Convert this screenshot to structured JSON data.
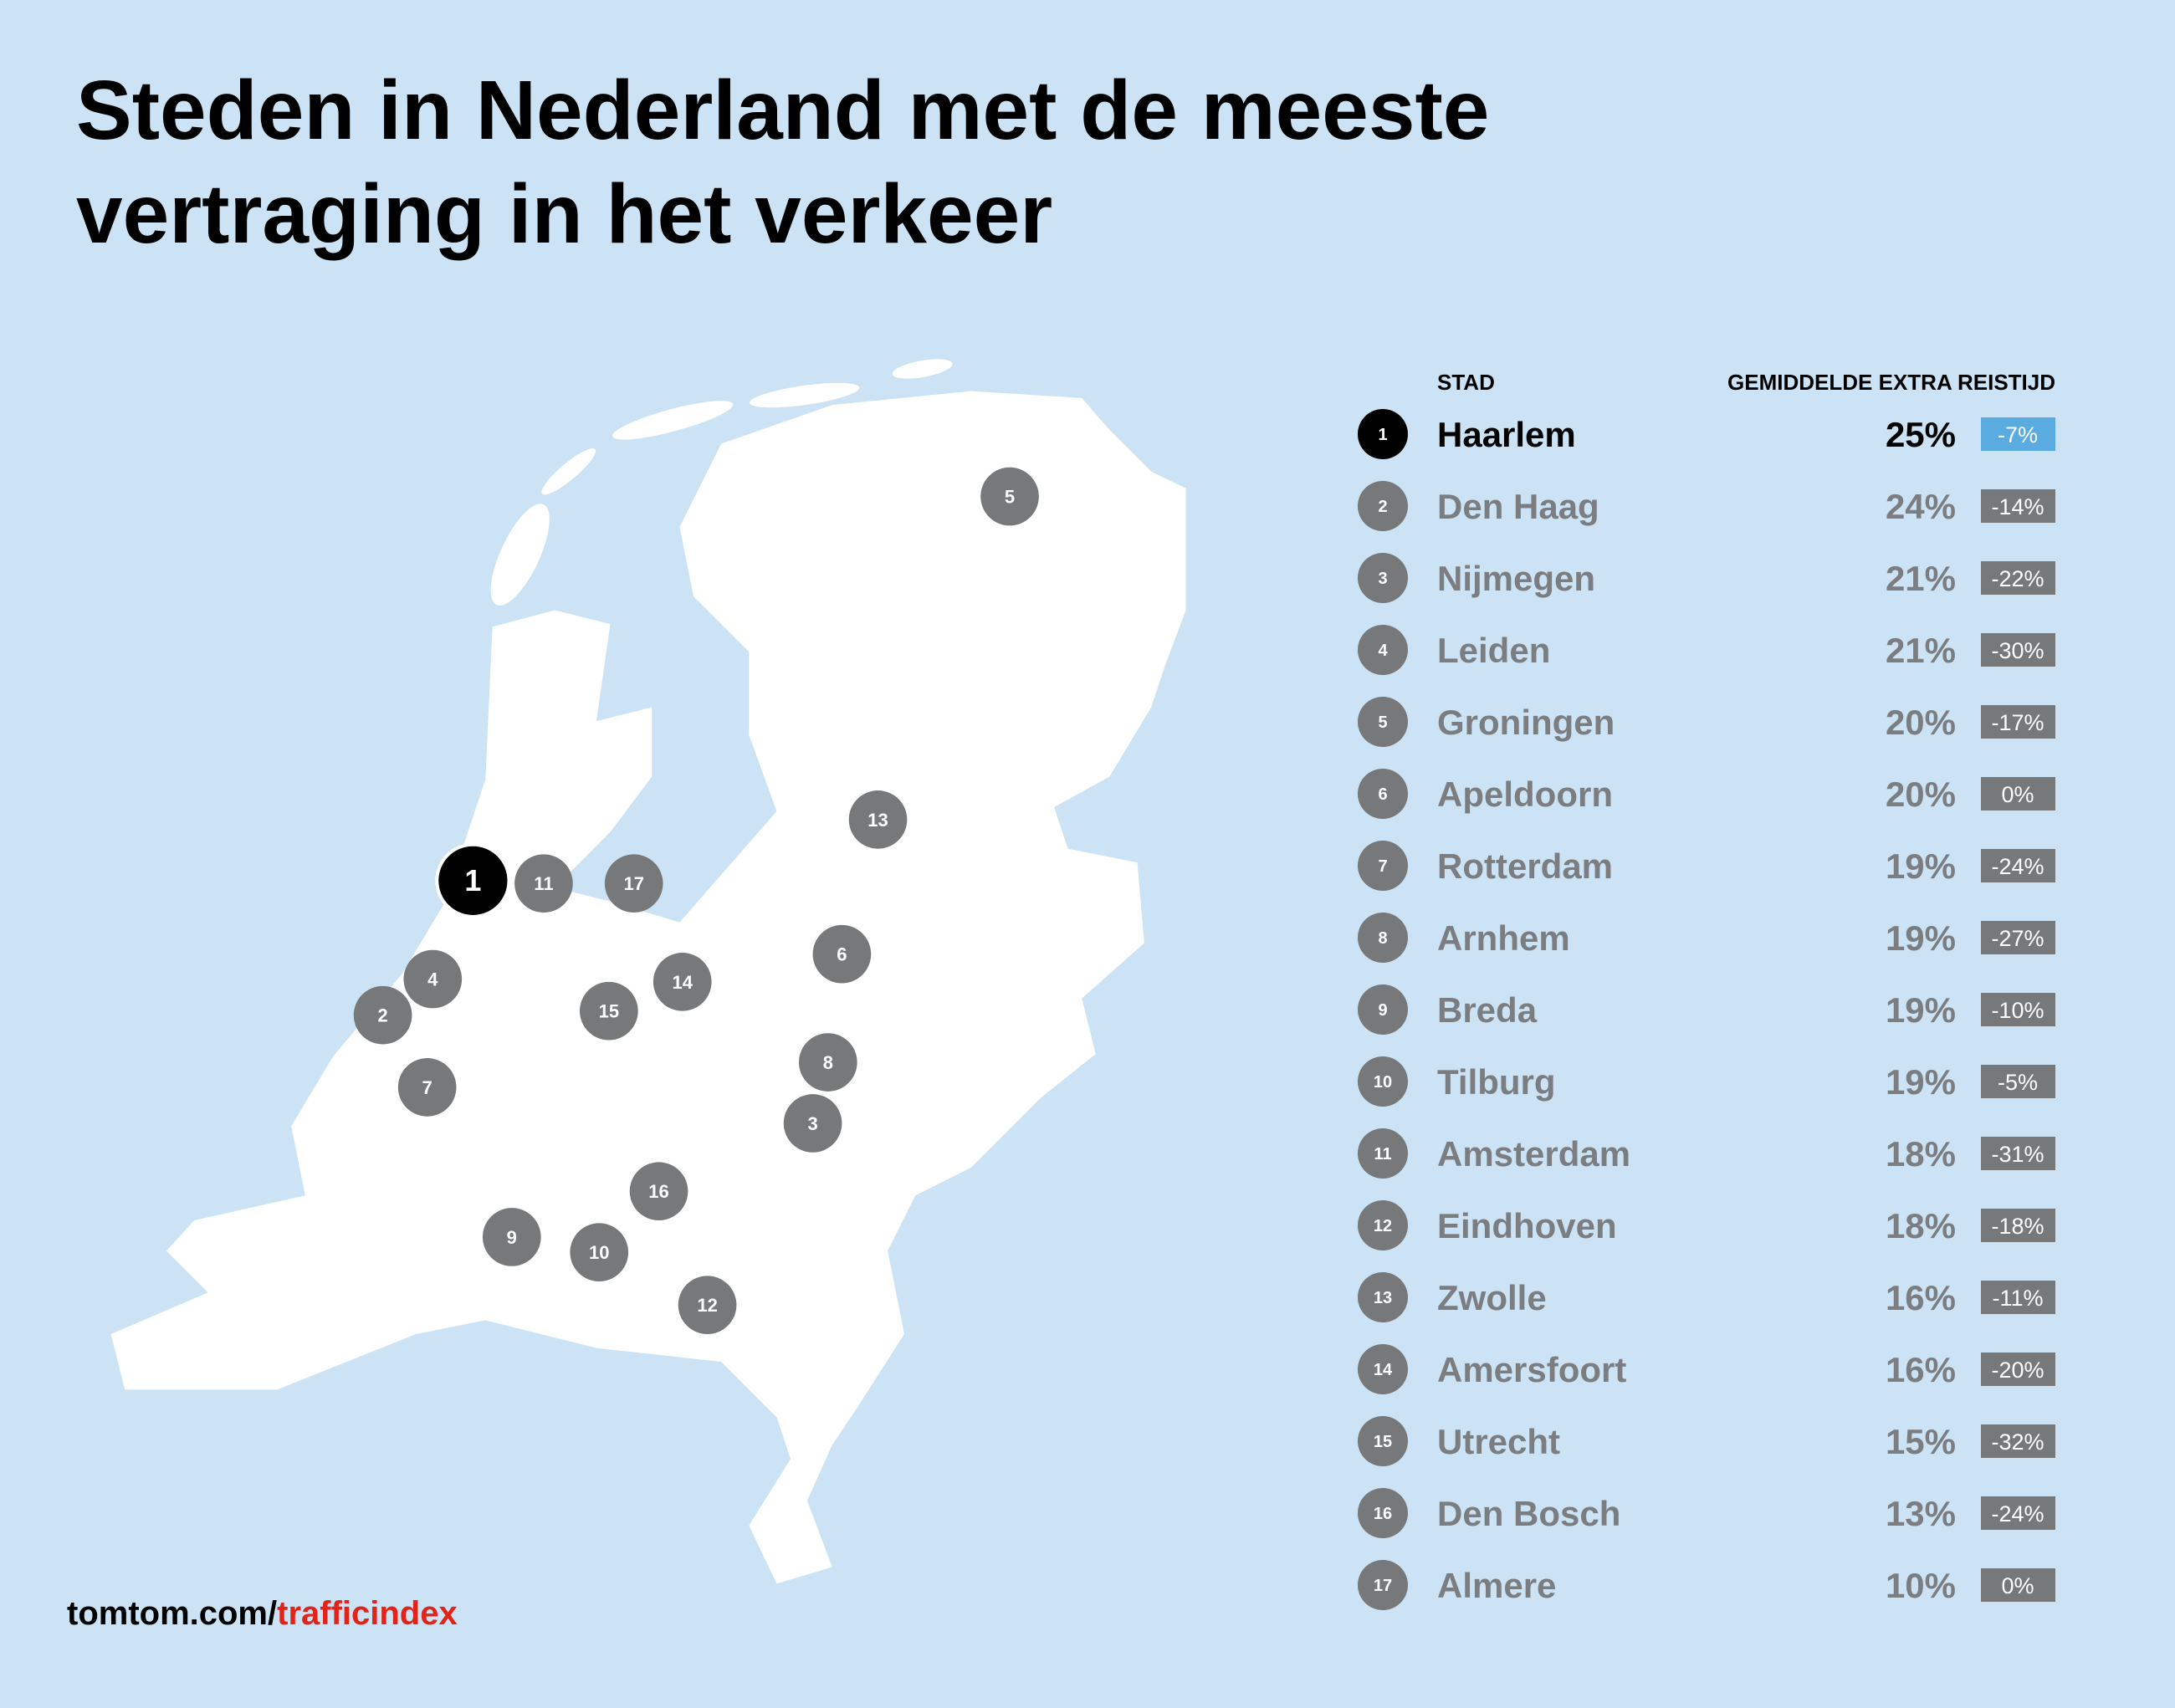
{
  "header": {
    "title_lines": [
      "Steden in Nederland met de meeste",
      "vertraging in het verkeer"
    ]
  },
  "table": {
    "columns": [
      "STAD",
      "GEMIDDELDE EXTRA REISTIJD"
    ],
    "rows": [
      {
        "rank": "1",
        "city": "Haarlem",
        "delay": "25%",
        "change": "-7%"
      },
      {
        "rank": "2",
        "city": "Den Haag",
        "delay": "24%",
        "change": "-14%"
      },
      {
        "rank": "3",
        "city": "Nijmegen",
        "delay": "21%",
        "change": "-22%"
      },
      {
        "rank": "4",
        "city": "Leiden",
        "delay": "21%",
        "change": "-30%"
      },
      {
        "rank": "5",
        "city": "Groningen",
        "delay": "20%",
        "change": "-17%"
      },
      {
        "rank": "6",
        "city": "Apeldoorn",
        "delay": "20%",
        "change": "0%"
      },
      {
        "rank": "7",
        "city": "Rotterdam",
        "delay": "19%",
        "change": "-24%"
      },
      {
        "rank": "8",
        "city": "Arnhem",
        "delay": "19%",
        "change": "-27%"
      },
      {
        "rank": "9",
        "city": "Breda",
        "delay": "19%",
        "change": "-10%"
      },
      {
        "rank": "10",
        "city": "Tilburg",
        "delay": "19%",
        "change": "-5%"
      },
      {
        "rank": "11",
        "city": "Amsterdam",
        "delay": "18%",
        "change": "-31%"
      },
      {
        "rank": "12",
        "city": "Eindhoven",
        "delay": "18%",
        "change": "-18%"
      },
      {
        "rank": "13",
        "city": "Zwolle",
        "delay": "16%",
        "change": "-11%"
      },
      {
        "rank": "14",
        "city": "Amersfoort",
        "delay": "16%",
        "change": "-20%"
      },
      {
        "rank": "15",
        "city": "Utrecht",
        "delay": "15%",
        "change": "-32%"
      },
      {
        "rank": "16",
        "city": "Den Bosch",
        "delay": "13%",
        "change": "-24%"
      },
      {
        "rank": "17",
        "city": "Almere",
        "delay": "10%",
        "change": "0%"
      }
    ]
  },
  "footer": {
    "domain": "tomtom.com/",
    "path": "trafficindex"
  }
}
